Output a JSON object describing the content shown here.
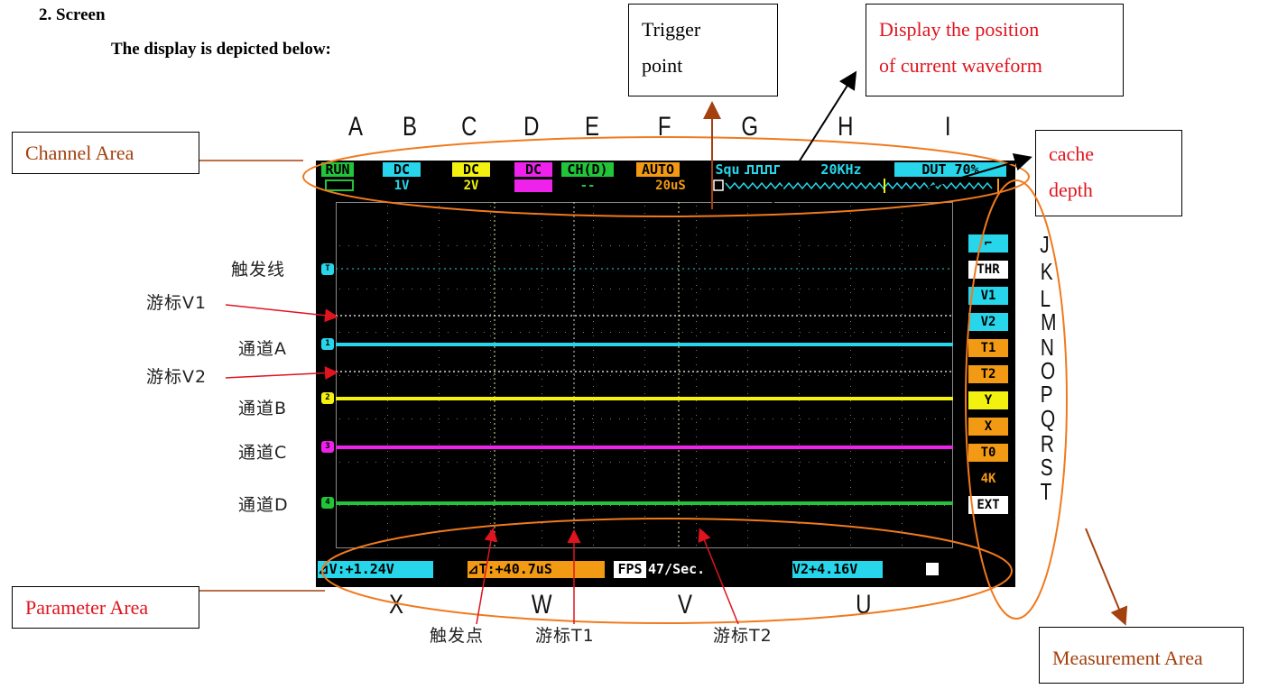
{
  "doc": {
    "section_heading": "2.   Screen",
    "intro": "The display is depicted below:"
  },
  "callouts": {
    "trigger_point": [
      "Trigger",
      "point"
    ],
    "display_position": [
      "Display  the  position",
      "of current waveform"
    ],
    "channel_area": "Channel Area",
    "cache_depth": [
      "cache",
      "depth"
    ],
    "parameter_area": "Parameter Area",
    "measurement_area": "Measurement Area"
  },
  "column_letters": [
    "A",
    "B",
    "C",
    "D",
    "E",
    "F",
    "G",
    "H",
    "I"
  ],
  "row_letters": [
    "J",
    "K",
    "L",
    "M",
    "N",
    "O",
    "P",
    "Q",
    "R",
    "S",
    "T"
  ],
  "bottom_letters": [
    "X",
    "W",
    "V",
    "U"
  ],
  "left_labels": {
    "trigger_line": "触发线",
    "cursor_v1": "游标V1",
    "channel_a": "通道A",
    "cursor_v2": "游标V2",
    "channel_b": "通道B",
    "channel_c": "通道C",
    "channel_d": "通道D"
  },
  "bottom_labels": {
    "trigger_point": "触发点",
    "cursor_t1": "游标T1",
    "cursor_t2": "游标T2"
  },
  "screen": {
    "status": {
      "run": "RUN",
      "ch_a_coupling": "DC",
      "ch_a_scale": "1V",
      "ch_b_coupling": "DC",
      "ch_b_scale": "2V",
      "ch_c_coupling": "DC",
      "ch_c_scale": "--",
      "ch_d_mode": "CH(D)",
      "ch_d_scale": "--",
      "trigger_mode": "AUTO",
      "timebase": "20uS",
      "wave_type": "Squ",
      "frequency": "20KHz",
      "duty": "DUT 70%"
    },
    "channel_tags": [
      "T",
      "1",
      "2",
      "3",
      "4"
    ],
    "measurement_items": [
      "⌐",
      "THR",
      "V1",
      "V2",
      "T1",
      "T2",
      "Y",
      "X",
      "T0",
      "4K",
      "EXT"
    ],
    "params": {
      "delta_v": "⊿V:+1.24V",
      "delta_t": "⊿T:+40.7uS",
      "fps_label": "FPS",
      "fps_value": "47/Sec.",
      "v2": "V2+4.16V"
    }
  },
  "colors": {
    "cyan": "#27d6ea",
    "yellow": "#f3f10f",
    "magenta": "#ee22ea",
    "green": "#22c53a",
    "orange": "#f39a14",
    "callout_red": "#e0141e",
    "area_brown": "#a3410f",
    "ellipse_orange": "#f07a1e"
  }
}
